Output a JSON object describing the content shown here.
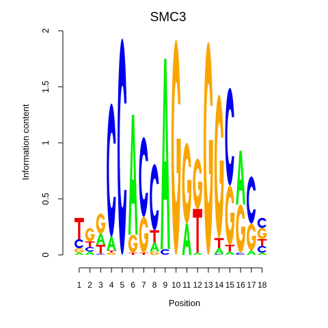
{
  "colors": {
    "A": "#00ee00",
    "C": "#0000ee",
    "G": "#f9a500",
    "T": "#ee0000",
    "axis": "#000000",
    "background": "#ffffff"
  },
  "chart_data": {
    "type": "sequence-logo",
    "title": "SMC3",
    "xlabel": "Position",
    "ylabel": "Information content",
    "ylim": [
      0,
      2
    ],
    "y_ticks": [
      0,
      0.5,
      1,
      1.5,
      2
    ],
    "y_tick_labels": [
      "0",
      "0.5",
      "1",
      "1.5",
      "2"
    ],
    "x_tick_labels": [
      "1",
      "2",
      "3",
      "4",
      "5",
      "6",
      "7",
      "8",
      "9",
      "10",
      "11",
      "12",
      "13",
      "14",
      "15",
      "16",
      "17",
      "18"
    ],
    "positions": [
      {
        "pos": 1,
        "stack": [
          {
            "base": "A",
            "height": 0.02
          },
          {
            "base": "G",
            "height": 0.04
          },
          {
            "base": "C",
            "height": 0.08
          },
          {
            "base": "T",
            "height": 0.19
          }
        ]
      },
      {
        "pos": 2,
        "stack": [
          {
            "base": "A",
            "height": 0.03
          },
          {
            "base": "C",
            "height": 0.04
          },
          {
            "base": "T",
            "height": 0.05
          },
          {
            "base": "G",
            "height": 0.12
          }
        ]
      },
      {
        "pos": 3,
        "stack": [
          {
            "base": "C",
            "height": 0.01
          },
          {
            "base": "T",
            "height": 0.08
          },
          {
            "base": "A",
            "height": 0.1
          },
          {
            "base": "G",
            "height": 0.18
          }
        ]
      },
      {
        "pos": 4,
        "stack": [
          {
            "base": "G",
            "height": 0.02
          },
          {
            "base": "T",
            "height": 0.02
          },
          {
            "base": "A",
            "height": 0.12
          },
          {
            "base": "C",
            "height": 1.19
          }
        ]
      },
      {
        "pos": 5,
        "stack": [
          {
            "base": "C",
            "height": 1.93
          }
        ]
      },
      {
        "pos": 6,
        "stack": [
          {
            "base": "T",
            "height": 0.02
          },
          {
            "base": "G",
            "height": 0.16
          },
          {
            "base": "A",
            "height": 1.07
          }
        ]
      },
      {
        "pos": 7,
        "stack": [
          {
            "base": "T",
            "height": 0.02
          },
          {
            "base": "G",
            "height": 0.32
          },
          {
            "base": "C",
            "height": 0.71
          }
        ]
      },
      {
        "pos": 8,
        "stack": [
          {
            "base": "G",
            "height": 0.03
          },
          {
            "base": "A",
            "height": 0.08
          },
          {
            "base": "T",
            "height": 0.11
          },
          {
            "base": "C",
            "height": 0.59
          }
        ]
      },
      {
        "pos": 9,
        "stack": [
          {
            "base": "C",
            "height": 0.05
          },
          {
            "base": "A",
            "height": 1.7
          }
        ]
      },
      {
        "pos": 10,
        "stack": [
          {
            "base": "G",
            "height": 1.92
          }
        ]
      },
      {
        "pos": 11,
        "stack": [
          {
            "base": "A",
            "height": 0.28
          },
          {
            "base": "G",
            "height": 0.72
          }
        ]
      },
      {
        "pos": 12,
        "stack": [
          {
            "base": "A",
            "height": 0.02
          },
          {
            "base": "T",
            "height": 0.39
          },
          {
            "base": "G",
            "height": 0.45
          }
        ]
      },
      {
        "pos": 13,
        "stack": [
          {
            "base": "G",
            "height": 1.9
          }
        ]
      },
      {
        "pos": 14,
        "stack": [
          {
            "base": "C",
            "height": 0.01
          },
          {
            "base": "A",
            "height": 0.05
          },
          {
            "base": "T",
            "height": 0.09
          },
          {
            "base": "G",
            "height": 1.28
          }
        ]
      },
      {
        "pos": 15,
        "stack": [
          {
            "base": "A",
            "height": 0.03
          },
          {
            "base": "T",
            "height": 0.06
          },
          {
            "base": "G",
            "height": 0.53
          },
          {
            "base": "C",
            "height": 0.87
          }
        ]
      },
      {
        "pos": 16,
        "stack": [
          {
            "base": "C",
            "height": 0.02
          },
          {
            "base": "G",
            "height": 0.43
          },
          {
            "base": "A",
            "height": 0.48
          }
        ]
      },
      {
        "pos": 17,
        "stack": [
          {
            "base": "A",
            "height": 0.04
          },
          {
            "base": "G",
            "height": 0.24
          },
          {
            "base": "C",
            "height": 0.42
          }
        ]
      },
      {
        "pos": 18,
        "stack": [
          {
            "base": "A",
            "height": 0.02
          },
          {
            "base": "C",
            "height": 0.06
          },
          {
            "base": "T",
            "height": 0.06
          },
          {
            "base": "G",
            "height": 0.1
          },
          {
            "base": "C",
            "height": 0.09
          }
        ]
      }
    ]
  }
}
